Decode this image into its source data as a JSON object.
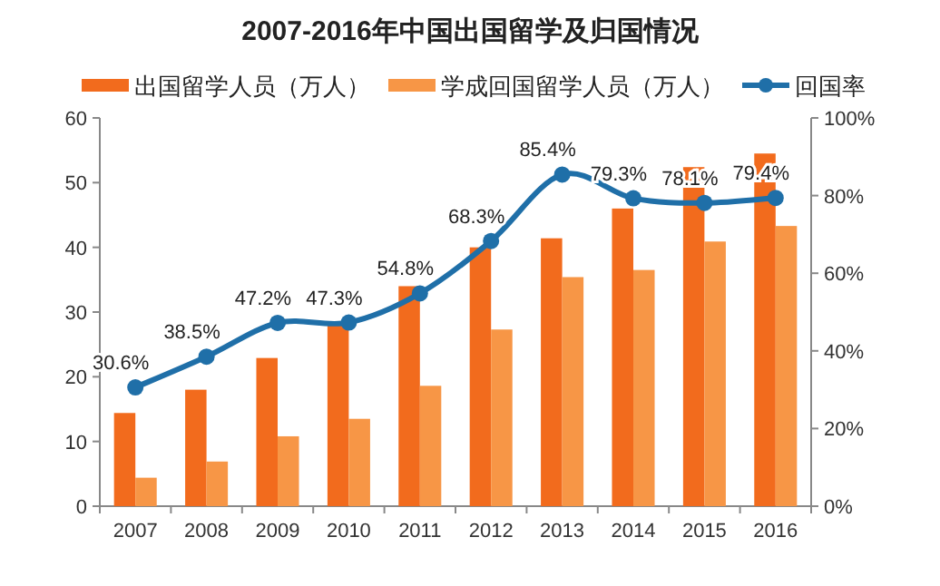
{
  "chart_data": {
    "type": "bar",
    "title": "2007-2016年中国出国留学及归国情况",
    "categories": [
      "2007",
      "2008",
      "2009",
      "2010",
      "2011",
      "2012",
      "2013",
      "2014",
      "2015",
      "2016"
    ],
    "series": [
      {
        "name": "出国留学人员（万人）",
        "color": "#f26b1d",
        "values": [
          14.4,
          18.0,
          22.9,
          28.5,
          34.0,
          40.0,
          41.4,
          46.0,
          52.4,
          54.5
        ]
      },
      {
        "name": "学成回国留学人员（万人）",
        "color": "#f79646",
        "values": [
          4.4,
          6.9,
          10.8,
          13.5,
          18.6,
          27.3,
          35.4,
          36.5,
          40.9,
          43.3
        ]
      },
      {
        "name": "回国率",
        "type": "line",
        "axis": "y2",
        "color": "#1f6fa8",
        "marker": "circle",
        "values": [
          30.6,
          38.5,
          47.2,
          47.3,
          54.8,
          68.3,
          85.4,
          79.3,
          78.1,
          79.4
        ],
        "value_labels": [
          "30.6%",
          "38.5%",
          "47.2%",
          "47.3%",
          "54.8%",
          "68.3%",
          "85.4%",
          "79.3%",
          "78.1%",
          "79.4%"
        ]
      }
    ],
    "ylim": [
      0,
      60
    ],
    "yticks": [
      0,
      10,
      20,
      30,
      40,
      50,
      60
    ],
    "y2lim": [
      0,
      100
    ],
    "y2ticks": [
      {
        "value": 0,
        "label": "0%"
      },
      {
        "value": 20,
        "label": "20%"
      },
      {
        "value": 40,
        "label": "40%"
      },
      {
        "value": 60,
        "label": "60%"
      },
      {
        "value": 80,
        "label": "80%"
      },
      {
        "value": 100,
        "label": "100%"
      }
    ],
    "legend": "top",
    "grid": false
  }
}
